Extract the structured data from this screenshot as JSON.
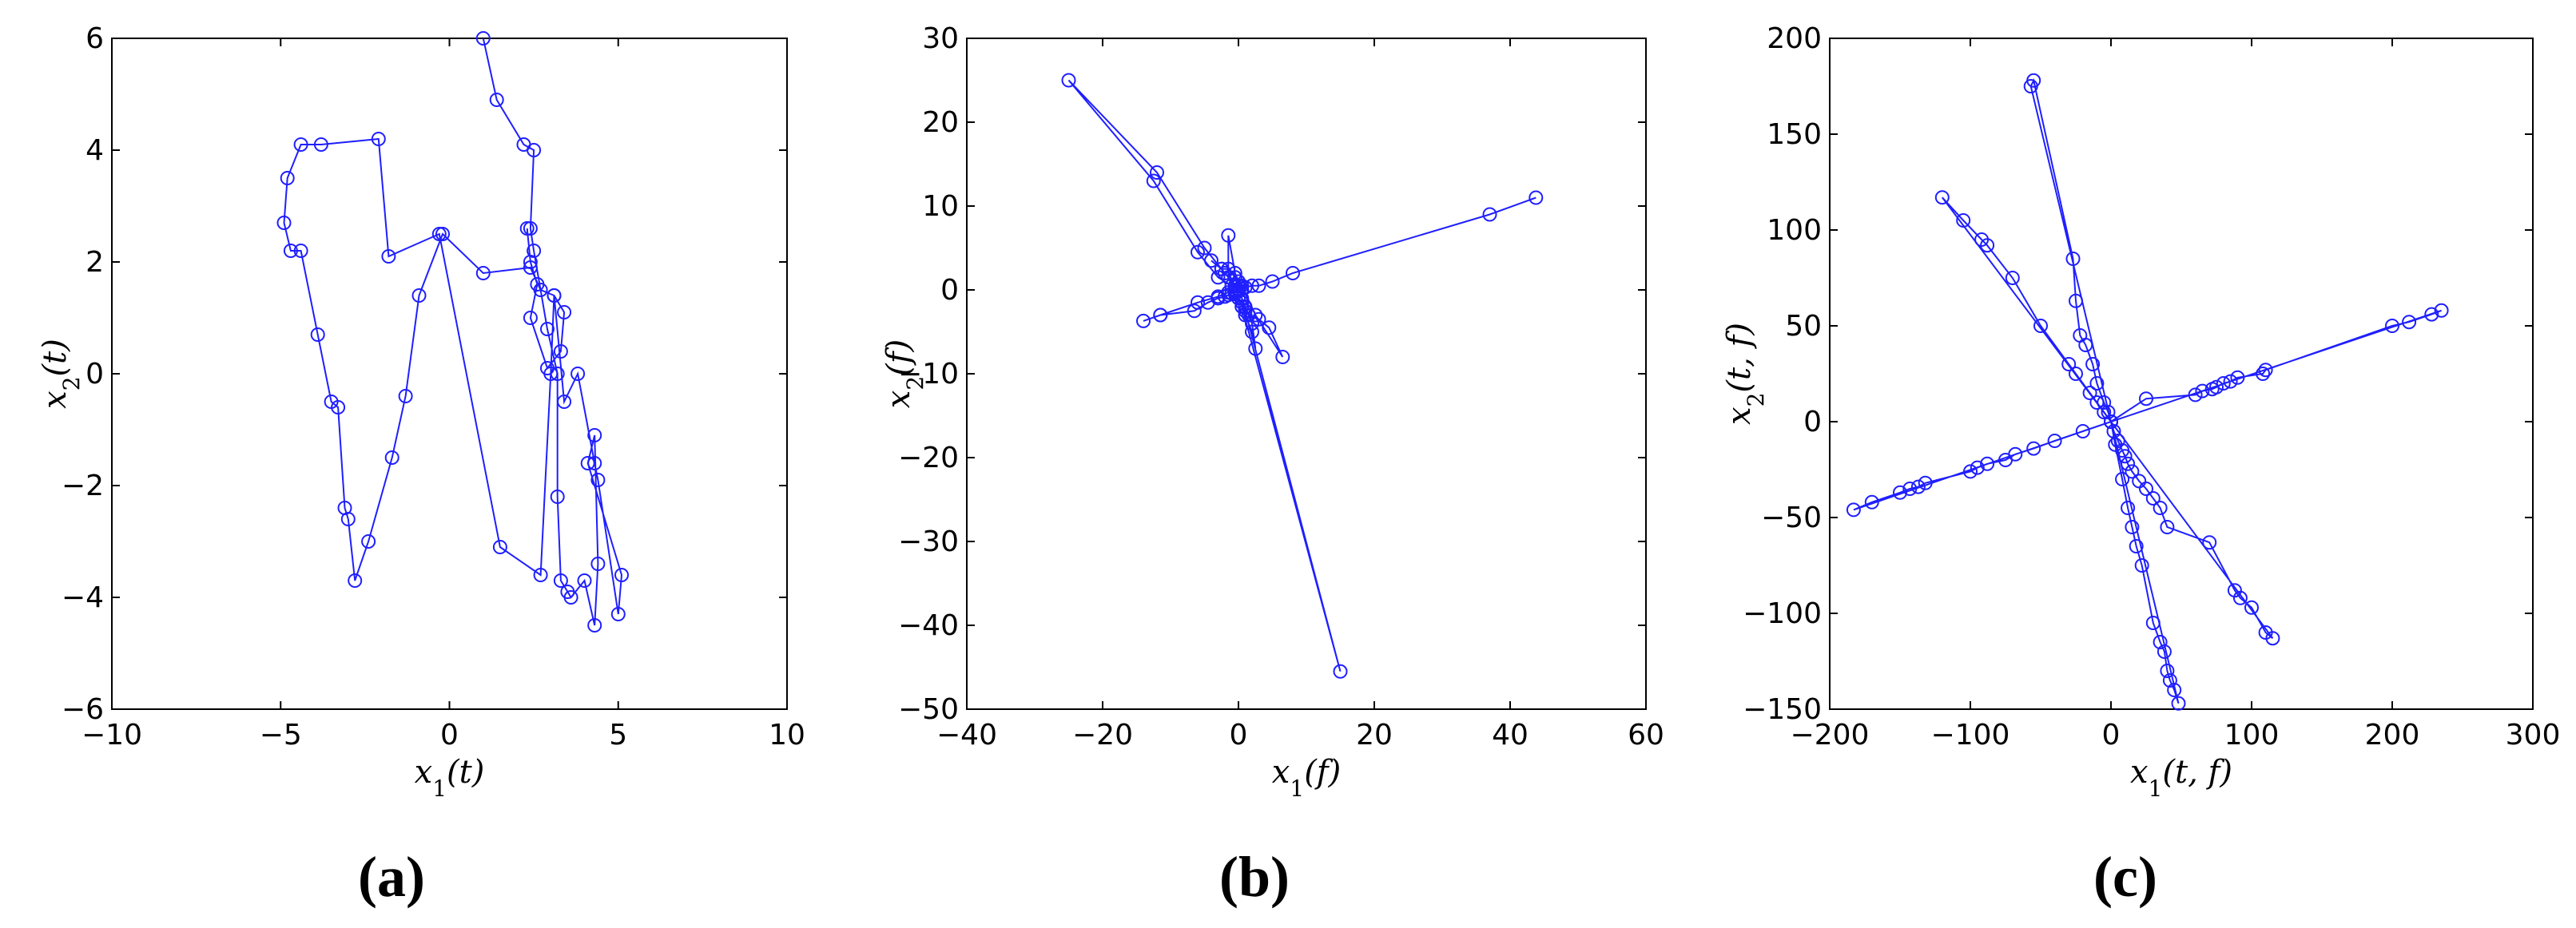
{
  "colors": {
    "series": "#1f1fff",
    "axis": "#000000",
    "background": "#ffffff"
  },
  "chart_data": [
    {
      "type": "line",
      "panel_label": "(a)",
      "xlabel": "x₁(t)",
      "ylabel": "x₂(t)",
      "xlim": [
        -10,
        10
      ],
      "ylim": [
        -6,
        6
      ],
      "xticks": [
        -10,
        -5,
        0,
        5,
        10
      ],
      "yticks": [
        -6,
        -4,
        -2,
        0,
        2,
        4,
        6
      ],
      "xtick_labels": [
        "−10",
        "−5",
        "0",
        "5",
        "10"
      ],
      "ytick_labels": [
        "−6",
        "−4",
        "−2",
        "0",
        "2",
        "4",
        "6"
      ],
      "grid": false,
      "markers": "open-circle",
      "series": [
        {
          "x": [
            1.0,
            1.4,
            2.2,
            2.5,
            2.4,
            2.5,
            2.9,
            3.2,
            3.2,
            3.3,
            3.5,
            3.6,
            4.0,
            4.3,
            4.4,
            4.3,
            4.1,
            5.1,
            5.0,
            4.4,
            4.3,
            3.8,
            3.4,
            3.1,
            3.0,
            2.7,
            1.5,
            -0.3,
            -1.8,
            -2.1,
            -3.8,
            -4.4,
            -4.8,
            -4.9,
            -4.7,
            -4.4,
            -3.9,
            -3.5,
            -3.3,
            -3.1,
            -3.0,
            -2.8,
            -2.4,
            -1.7,
            -1.3,
            -0.9,
            -0.2,
            1.0,
            2.4,
            2.7,
            3.1,
            3.4,
            3.3,
            2.9,
            2.4,
            2.6,
            2.4,
            2.3
          ],
          "y": [
            6.0,
            4.9,
            4.1,
            4.0,
            2.6,
            2.2,
            0.8,
            0.0,
            -2.2,
            -3.7,
            -3.9,
            -4.0,
            -3.7,
            -4.5,
            -3.4,
            -1.1,
            -1.6,
            -3.6,
            -4.3,
            -1.9,
            -1.6,
            0.0,
            -0.5,
            1.4,
            0.0,
            -3.6,
            -3.1,
            2.5,
            2.1,
            4.2,
            4.1,
            4.1,
            3.5,
            2.7,
            2.2,
            2.2,
            0.7,
            -0.5,
            -0.6,
            -2.4,
            -2.6,
            -3.7,
            -3.0,
            -1.5,
            -0.4,
            1.4,
            2.5,
            1.8,
            1.9,
            1.5,
            1.4,
            1.1,
            0.4,
            0.1,
            1.0,
            1.6,
            2.0,
            2.6
          ]
        }
      ]
    },
    {
      "type": "line",
      "panel_label": "(b)",
      "xlabel": "x₁(f)",
      "ylabel": "x₂(f)",
      "xlim": [
        -40,
        60
      ],
      "ylim": [
        -50,
        30
      ],
      "xticks": [
        -40,
        -20,
        0,
        20,
        40,
        60
      ],
      "yticks": [
        -50,
        -40,
        -30,
        -20,
        -10,
        0,
        10,
        20,
        30
      ],
      "xtick_labels": [
        "−40",
        "−20",
        "0",
        "20",
        "40",
        "60"
      ],
      "ytick_labels": [
        "−50",
        "−40",
        "−30",
        "−20",
        "−10",
        "0",
        "10",
        "20",
        "30"
      ],
      "grid": false,
      "markers": "open-circle",
      "series": [
        {
          "x": [
            43.8,
            37.0,
            8.0,
            5.0,
            3.0,
            2.0,
            1.0,
            0.5,
            0.0,
            -0.5,
            -1.0,
            -1.5,
            -2.0,
            -3.0,
            -4.5,
            -6.5,
            -11.5,
            -14.0,
            -11.5,
            -6.0,
            -3.0,
            -1.5,
            -0.5,
            0.0,
            0.5,
            1.0,
            2.0,
            2.5,
            2.0,
            1.0,
            0.5,
            15.0,
            1.0,
            0.5,
            0.0,
            -0.5,
            0.5,
            1.5,
            3.0,
            4.5,
            6.5,
            2.5,
            0.5,
            -0.5,
            -1.5,
            -2.5,
            -4.0,
            -2.5,
            -1.5,
            -1.5,
            -0.5,
            0.0,
            -1.0,
            -3.0,
            -6.0,
            -12.5,
            -25.0,
            -12.0,
            -5.0,
            -2.0,
            -0.5,
            0.0
          ],
          "y": [
            11.0,
            9.0,
            2.0,
            1.0,
            0.5,
            0.5,
            0.3,
            0.1,
            0.0,
            -0.2,
            -0.4,
            -0.6,
            -0.8,
            -1.0,
            -1.5,
            -2.5,
            -3.0,
            -3.7,
            -3.0,
            -1.5,
            -0.8,
            -0.3,
            0.0,
            0.5,
            -1.0,
            -2.0,
            -4.0,
            -7.0,
            -5.0,
            -3.0,
            -2.0,
            -45.5,
            -2.5,
            -1.5,
            -1.0,
            -0.5,
            -2.0,
            -3.0,
            -3.5,
            -4.5,
            -8.0,
            -3.0,
            0.5,
            1.5,
            2.5,
            2.5,
            3.5,
            2.5,
            1.5,
            6.5,
            2.0,
            1.0,
            0.5,
            1.5,
            4.5,
            13.0,
            25.0,
            14.0,
            5.0,
            2.0,
            0.5,
            0.0
          ]
        }
      ]
    },
    {
      "type": "line",
      "panel_label": "(c)",
      "xlabel": "x₁(t, f)",
      "ylabel": "x₂(t, f)",
      "xlim": [
        -200,
        300
      ],
      "ylim": [
        -150,
        200
      ],
      "xticks": [
        -200,
        -100,
        0,
        100,
        200,
        300
      ],
      "yticks": [
        -150,
        -100,
        -50,
        0,
        50,
        100,
        150,
        200
      ],
      "xtick_labels": [
        "−200",
        "−100",
        "0",
        "100",
        "200",
        "300"
      ],
      "ytick_labels": [
        "−150",
        "−100",
        "−50",
        "0",
        "50",
        "100",
        "150",
        "200"
      ],
      "grid": false,
      "markers": "open-circle",
      "series": [
        {
          "x": [
            0,
            25,
            60,
            65,
            72,
            75,
            80,
            85,
            90,
            108,
            110,
            200,
            212,
            228,
            235,
            0,
            -20,
            -40,
            -55,
            -68,
            -75,
            -88,
            -95,
            -100,
            -132,
            -137,
            -143,
            -150,
            -170,
            -183,
            0,
            2,
            5,
            8,
            10,
            12,
            15,
            20,
            25,
            30,
            35,
            40,
            70,
            88,
            92,
            100,
            110,
            115,
            0,
            -2,
            -5,
            -10,
            -13,
            -18,
            -22,
            -25,
            -27,
            -55,
            -57,
            0,
            3,
            8,
            12,
            15,
            18,
            22,
            30,
            35,
            38,
            40,
            42,
            45,
            48,
            0,
            -5,
            -10,
            -15,
            -25,
            -30,
            -50,
            -70,
            -88,
            -92,
            -105,
            -120,
            0
          ],
          "y": [
            0,
            12,
            14,
            16,
            17,
            18,
            20,
            21,
            23,
            25,
            27,
            50,
            52,
            56,
            58,
            0,
            -5,
            -10,
            -14,
            -17,
            -20,
            -22,
            -24,
            -26,
            -32,
            -34,
            -35,
            -37,
            -42,
            -46,
            0,
            -5,
            -10,
            -15,
            -18,
            -22,
            -26,
            -31,
            -35,
            -40,
            -45,
            -55,
            -63,
            -88,
            -92,
            -97,
            -110,
            -113,
            0,
            5,
            10,
            20,
            30,
            40,
            45,
            63,
            85,
            178,
            175,
            0,
            -12,
            -30,
            -45,
            -55,
            -65,
            -75,
            -105,
            -115,
            -120,
            -130,
            -135,
            -140,
            -147,
            0,
            5,
            10,
            15,
            25,
            30,
            50,
            75,
            92,
            95,
            105,
            117,
            0
          ]
        }
      ]
    }
  ]
}
